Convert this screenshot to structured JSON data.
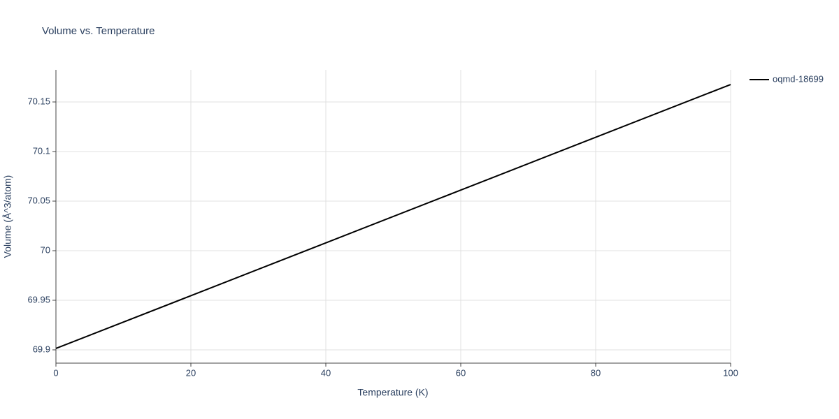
{
  "chart_data": {
    "type": "line",
    "title": "Volume vs. Temperature",
    "x_label": "Temperature (K)",
    "y_label": "Volume (Å^3/atom)",
    "x": [
      0,
      20,
      40,
      60,
      80,
      100
    ],
    "series": [
      {
        "name": "oqmd-18699",
        "color": "#000000",
        "values": [
          69.9014,
          69.9546,
          70.0079,
          70.0611,
          70.1144,
          70.1676
        ]
      }
    ],
    "xlim": [
      0,
      100
    ],
    "xticks": [
      0,
      20,
      40,
      60,
      80,
      100
    ],
    "ylim": [
      69.8866,
      70.1824
    ],
    "yticks": [
      69.9,
      69.95,
      70,
      70.05,
      70.1,
      70.15
    ],
    "grid": true,
    "legend": "right"
  }
}
